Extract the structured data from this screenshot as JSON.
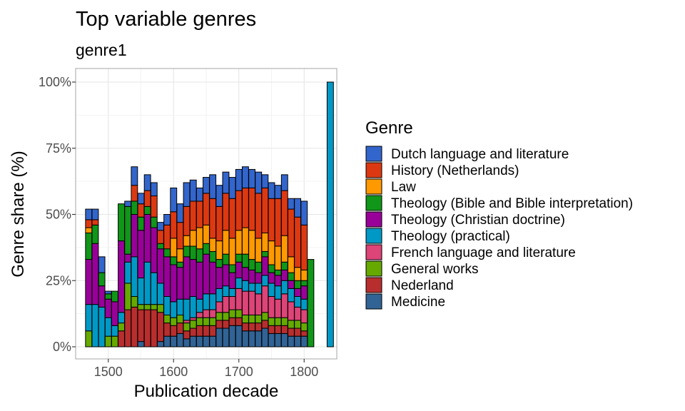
{
  "chart_data": {
    "type": "bar",
    "stacked": true,
    "title": "Top variable genres",
    "subtitle": "genre1",
    "xlabel": "Publication decade",
    "ylabel": "Genre share (%)",
    "xlim": [
      1450,
      1850
    ],
    "ylim": [
      0,
      100
    ],
    "x_ticks": [
      1500,
      1600,
      1700,
      1800
    ],
    "x_tick_labels": [
      "1500",
      "1600",
      "1700",
      "1800"
    ],
    "y_ticks": [
      0,
      25,
      50,
      75,
      100
    ],
    "y_tick_labels": [
      "0%",
      "25%",
      "50%",
      "75%",
      "100%"
    ],
    "grid": true,
    "legend": {
      "title": "Genre",
      "position": "right",
      "entries": [
        {
          "label": "Dutch language and literature",
          "color": "#3366CC"
        },
        {
          "label": "History (Netherlands)",
          "color": "#DC3912"
        },
        {
          "label": "Law",
          "color": "#FF9900"
        },
        {
          "label": "Theology (Bible and Bible interpretation)",
          "color": "#109618"
        },
        {
          "label": "Theology (Christian doctrine)",
          "color": "#990099"
        },
        {
          "label": "Theology (practical)",
          "color": "#0099C6"
        },
        {
          "label": "French language and literature",
          "color": "#DD4477"
        },
        {
          "label": "General works",
          "color": "#66AA00"
        },
        {
          "label": "Nederland",
          "color": "#B82E2E"
        },
        {
          "label": "Medicine",
          "color": "#316395"
        }
      ]
    },
    "stack_order_bottom_to_top": [
      "Medicine",
      "Nederland",
      "General works",
      "French language and literature",
      "Theology (practical)",
      "Theology (Christian doctrine)",
      "Theology (Bible and Bible interpretation)",
      "Law",
      "History (Netherlands)",
      "Dutch language and literature"
    ],
    "x": [
      1470,
      1480,
      1490,
      1500,
      1510,
      1520,
      1530,
      1540,
      1550,
      1560,
      1570,
      1580,
      1590,
      1600,
      1610,
      1620,
      1630,
      1640,
      1650,
      1660,
      1670,
      1680,
      1690,
      1700,
      1710,
      1720,
      1730,
      1740,
      1750,
      1760,
      1770,
      1780,
      1790,
      1800,
      1810,
      1840
    ],
    "series": [
      {
        "name": "Medicine",
        "values": [
          0,
          0,
          0,
          0,
          0,
          0,
          0,
          0,
          2,
          0,
          0,
          2,
          4,
          4,
          5,
          3,
          4,
          4,
          4,
          4,
          7,
          7,
          8,
          8,
          6,
          6,
          6,
          7,
          5,
          5,
          5,
          4,
          4,
          4,
          0,
          0
        ]
      },
      {
        "name": "Nederland",
        "values": [
          0,
          0,
          0,
          0,
          0,
          6,
          14,
          15,
          12,
          14,
          14,
          11,
          5,
          4,
          4,
          3,
          3,
          4,
          4,
          4,
          3,
          3,
          3,
          3,
          3,
          3,
          3,
          3,
          3,
          3,
          3,
          3,
          3,
          2,
          0,
          0
        ]
      },
      {
        "name": "General works",
        "values": [
          6,
          0,
          0,
          4,
          4,
          3,
          10,
          4,
          2,
          2,
          2,
          3,
          3,
          3,
          3,
          3,
          3,
          3,
          3,
          3,
          3,
          3,
          3,
          3,
          3,
          3,
          3,
          3,
          3,
          3,
          3,
          3,
          3,
          3,
          0,
          0
        ]
      },
      {
        "name": "French language and literature",
        "values": [
          0,
          0,
          0,
          0,
          0,
          0,
          0,
          0,
          0,
          0,
          0,
          0,
          0,
          0,
          0,
          1,
          1,
          2,
          3,
          3,
          4,
          6,
          5,
          8,
          9,
          9,
          8,
          10,
          8,
          7,
          9,
          7,
          5,
          5,
          0,
          0
        ]
      },
      {
        "name": "Theology (practical)",
        "values": [
          10,
          16,
          15,
          7,
          4,
          4,
          8,
          15,
          10,
          16,
          12,
          8,
          7,
          6,
          6,
          8,
          8,
          5,
          6,
          6,
          5,
          4,
          3,
          4,
          4,
          3,
          4,
          4,
          5,
          5,
          5,
          5,
          4,
          4,
          0,
          100
        ]
      },
      {
        "name": "Theology (Christian doctrine)",
        "values": [
          17,
          23,
          8,
          7,
          9,
          27,
          3,
          16,
          18,
          18,
          17,
          13,
          15,
          14,
          12,
          16,
          14,
          14,
          15,
          12,
          8,
          8,
          6,
          6,
          5,
          5,
          4,
          7,
          4,
          4,
          4,
          3,
          3,
          5,
          0,
          0
        ]
      },
      {
        "name": "Theology (Bible and Bible interpretation)",
        "values": [
          10,
          7,
          5,
          2,
          4,
          14,
          18,
          5,
          5,
          3,
          4,
          2,
          3,
          3,
          2,
          4,
          5,
          5,
          4,
          4,
          3,
          4,
          3,
          3,
          5,
          4,
          4,
          2,
          3,
          2,
          3,
          3,
          3,
          2,
          33,
          0
        ]
      },
      {
        "name": "Law",
        "values": [
          2,
          0,
          0,
          0,
          0,
          0,
          0,
          0,
          0,
          0,
          0,
          0,
          0,
          7,
          5,
          4,
          6,
          8,
          7,
          5,
          7,
          9,
          10,
          9,
          10,
          11,
          9,
          7,
          9,
          9,
          10,
          6,
          5,
          4,
          0,
          0
        ]
      },
      {
        "name": "History (Netherlands)",
        "values": [
          3,
          2,
          0,
          0,
          0,
          0,
          0,
          6,
          5,
          6,
          8,
          5,
          9,
          10,
          10,
          11,
          11,
          10,
          12,
          15,
          13,
          14,
          15,
          15,
          15,
          16,
          17,
          17,
          16,
          18,
          17,
          18,
          19,
          17,
          0,
          0
        ]
      },
      {
        "name": "Dutch language and literature",
        "values": [
          4,
          4,
          6,
          1,
          0,
          0,
          2,
          7,
          4,
          6,
          5,
          3,
          4,
          9,
          7,
          9,
          8,
          5,
          6,
          9,
          8,
          8,
          8,
          8,
          8,
          7,
          8,
          5,
          6,
          5,
          6,
          4,
          7,
          9,
          0,
          0
        ]
      }
    ]
  }
}
